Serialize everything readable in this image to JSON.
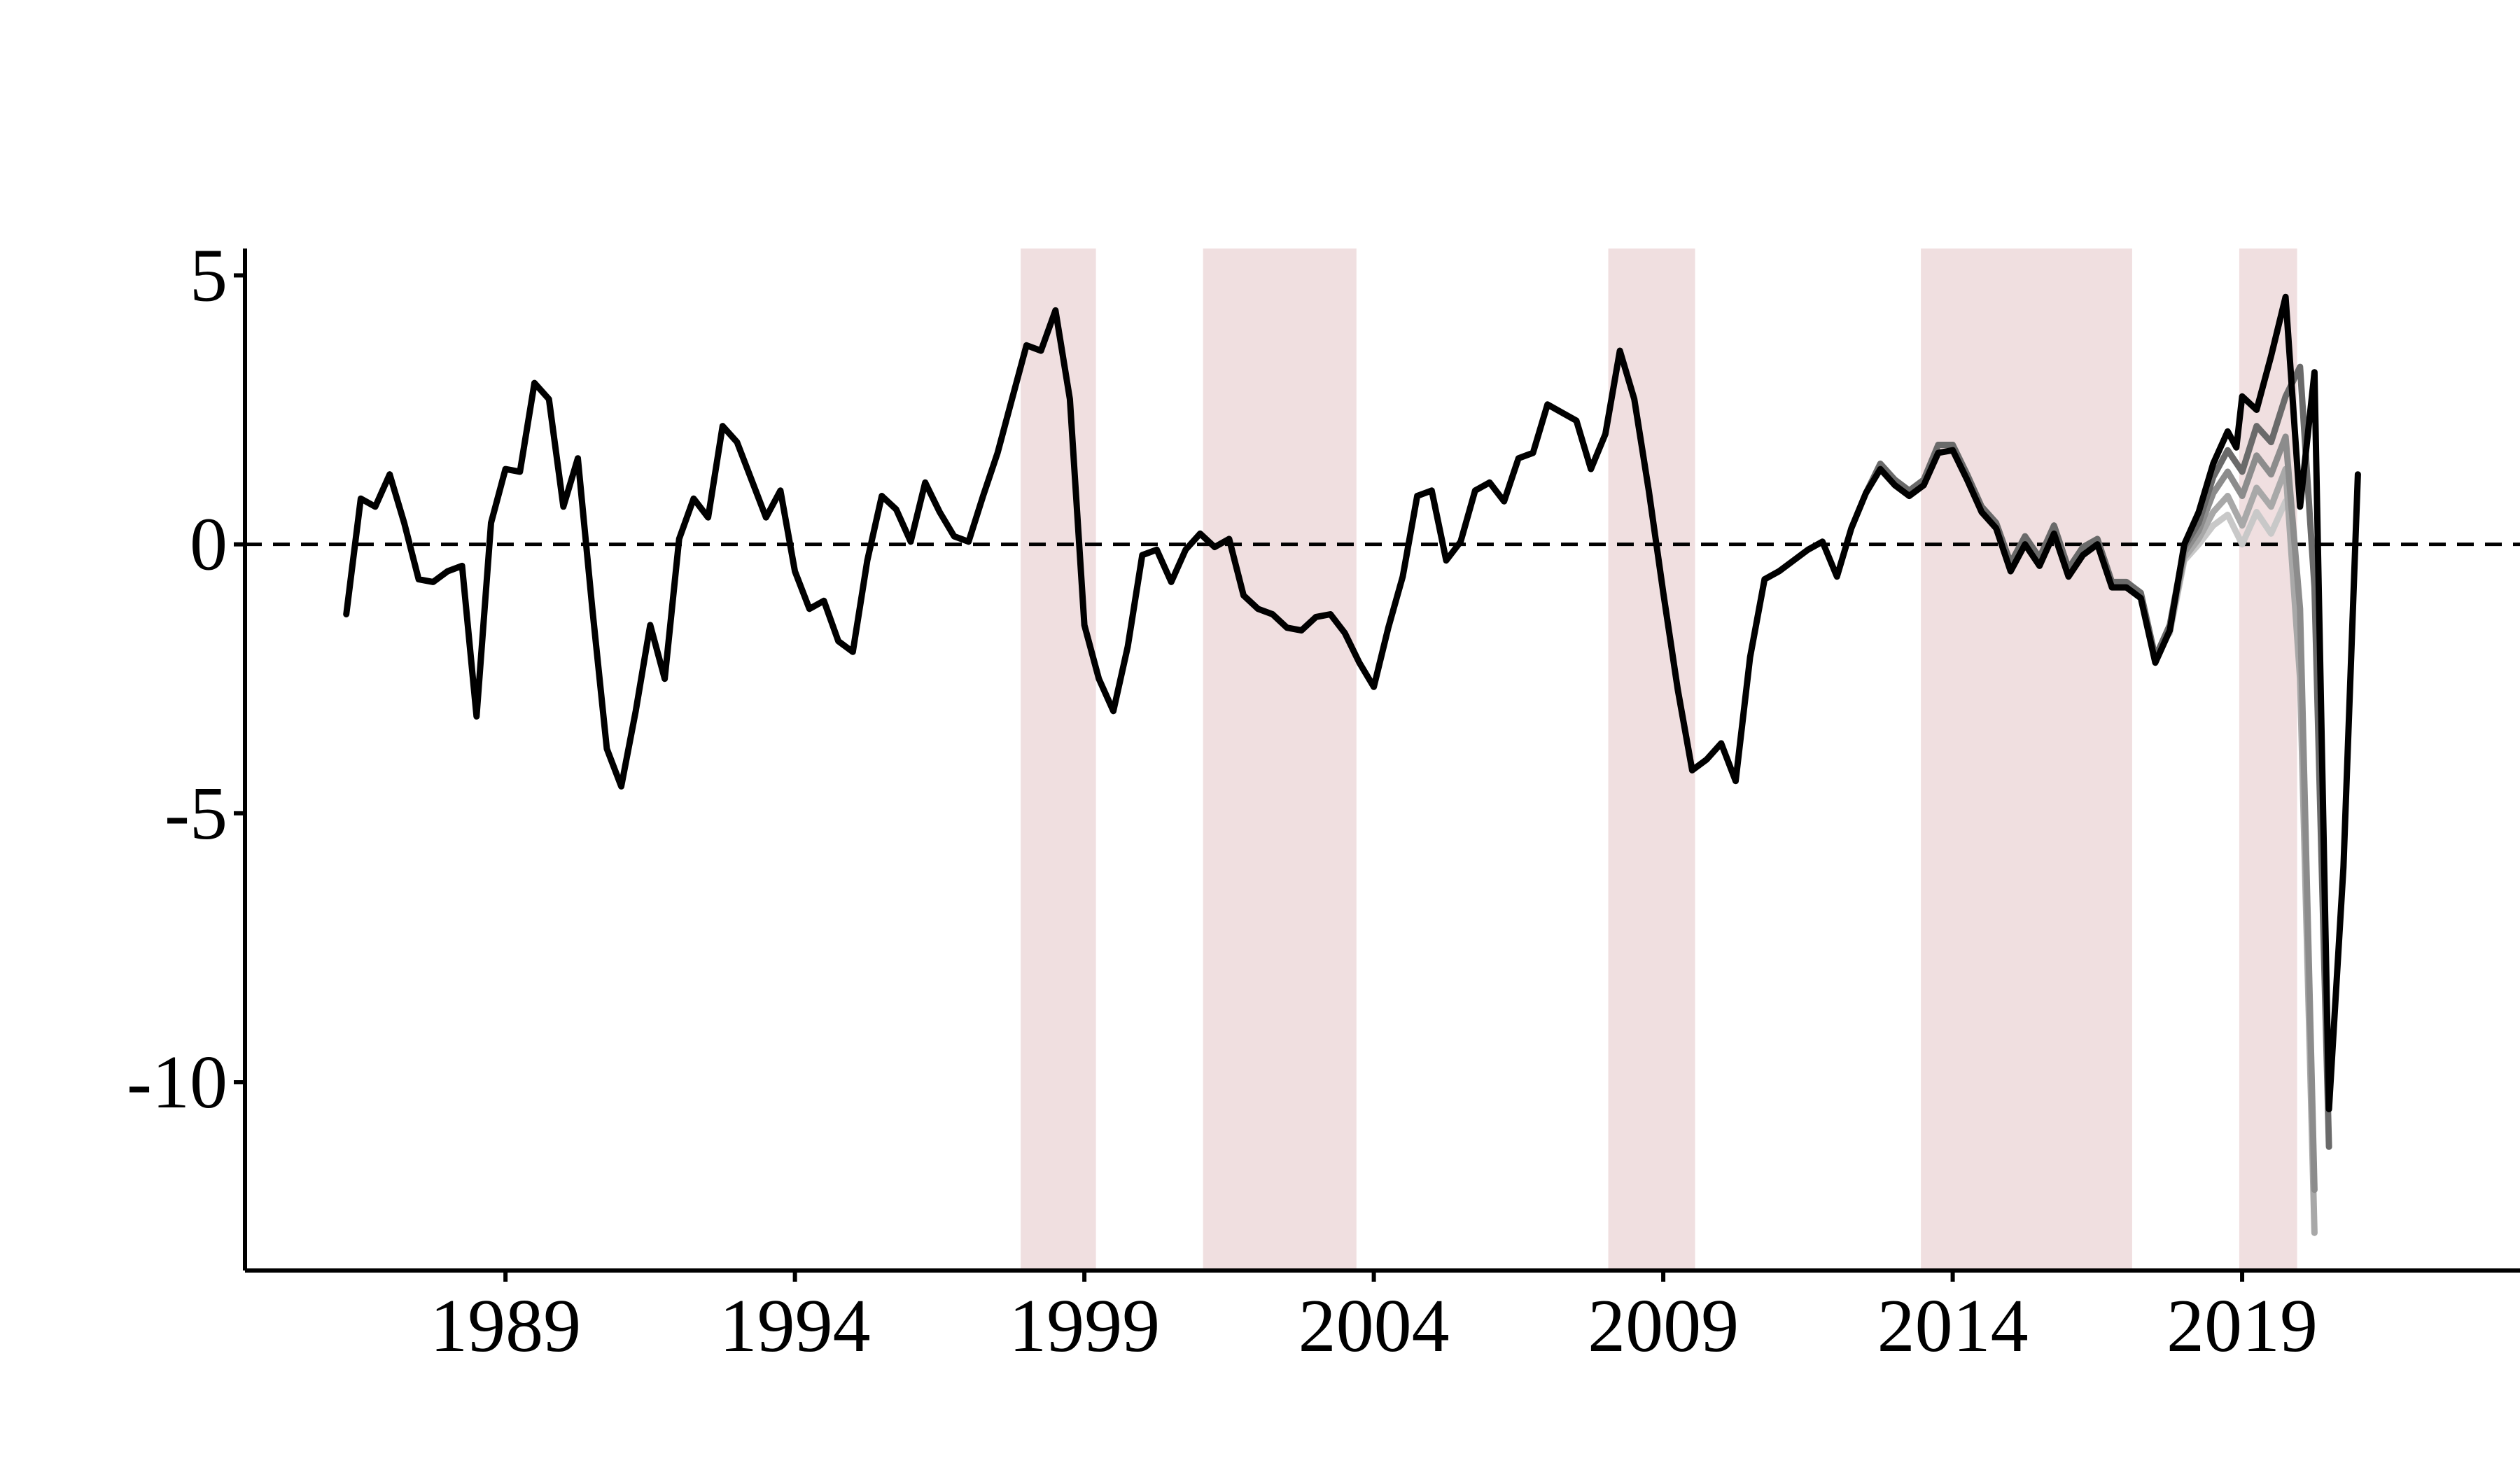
{
  "chart_data": {
    "type": "line",
    "title": "",
    "xlabel": "",
    "ylabel": "",
    "xlim": [
      1984.5,
      2023.8
    ],
    "ylim": [
      -13.5,
      5.5
    ],
    "x_ticks": [
      1989,
      1994,
      1999,
      2004,
      2009,
      2014,
      2019
    ],
    "x_tick_labels": [
      "1989",
      "1994",
      "1999",
      "2004",
      "2009",
      "2014",
      "2019"
    ],
    "y_ticks": [
      5,
      0,
      -5,
      -10
    ],
    "y_tick_labels": [
      "5",
      "0",
      "-5",
      "-10"
    ],
    "reference_line": {
      "y": 0,
      "style": "dashed"
    },
    "shaded_periods": [
      {
        "start": 1997.9,
        "end": 1999.2
      },
      {
        "start": 2001.05,
        "end": 2003.7
      },
      {
        "start": 2008.05,
        "end": 2009.55
      },
      {
        "start": 2013.45,
        "end": 2017.1
      },
      {
        "start": 2018.95,
        "end": 2019.95
      }
    ],
    "series": [
      {
        "color": "#000000",
        "points": [
          [
            1986.25,
            -1.3
          ],
          [
            1986.5,
            0.85
          ],
          [
            1986.75,
            0.7
          ],
          [
            1987.0,
            1.3
          ],
          [
            1987.25,
            0.4
          ],
          [
            1987.5,
            -0.65
          ],
          [
            1987.75,
            -0.7
          ],
          [
            1988.0,
            -0.5
          ],
          [
            1988.25,
            -0.4
          ],
          [
            1988.5,
            -3.2
          ],
          [
            1988.75,
            0.4
          ],
          [
            1989.0,
            1.4
          ],
          [
            1989.25,
            1.35
          ],
          [
            1989.5,
            3.0
          ],
          [
            1989.75,
            2.7
          ],
          [
            1990.0,
            0.7
          ],
          [
            1990.25,
            1.6
          ],
          [
            1990.5,
            -1.2
          ],
          [
            1990.75,
            -3.8
          ],
          [
            1991.0,
            -4.5
          ],
          [
            1991.25,
            -3.1
          ],
          [
            1991.5,
            -1.5
          ],
          [
            1991.75,
            -2.5
          ],
          [
            1992.0,
            0.1
          ],
          [
            1992.25,
            0.85
          ],
          [
            1992.5,
            0.5
          ],
          [
            1992.75,
            2.2
          ],
          [
            1993.0,
            1.9
          ],
          [
            1993.25,
            1.2
          ],
          [
            1993.5,
            0.5
          ],
          [
            1993.75,
            1.0
          ],
          [
            1994.0,
            -0.5
          ],
          [
            1994.25,
            -1.2
          ],
          [
            1994.5,
            -1.05
          ],
          [
            1994.75,
            -1.8
          ],
          [
            1995.0,
            -2.0
          ],
          [
            1995.25,
            -0.3
          ],
          [
            1995.5,
            0.9
          ],
          [
            1995.75,
            0.65
          ],
          [
            1996.0,
            0.05
          ],
          [
            1996.25,
            1.15
          ],
          [
            1996.5,
            0.6
          ],
          [
            1996.75,
            0.15
          ],
          [
            1997.0,
            0.05
          ],
          [
            1997.25,
            0.9
          ],
          [
            1997.5,
            1.7
          ],
          [
            1997.75,
            2.7
          ],
          [
            1998.0,
            3.7
          ],
          [
            1998.25,
            3.6
          ],
          [
            1998.5,
            4.35
          ],
          [
            1998.75,
            2.7
          ],
          [
            1999.0,
            -1.5
          ],
          [
            1999.25,
            -2.5
          ],
          [
            1999.5,
            -3.1
          ],
          [
            1999.75,
            -1.9
          ],
          [
            2000.0,
            -0.2
          ],
          [
            2000.25,
            -0.1
          ],
          [
            2000.5,
            -0.7
          ],
          [
            2000.75,
            -0.1
          ],
          [
            2001.0,
            0.2
          ],
          [
            2001.25,
            -0.05
          ],
          [
            2001.5,
            0.1
          ],
          [
            2001.75,
            -0.95
          ],
          [
            2002.0,
            -1.2
          ],
          [
            2002.25,
            -1.3
          ],
          [
            2002.5,
            -1.55
          ],
          [
            2002.75,
            -1.6
          ],
          [
            2003.0,
            -1.35
          ],
          [
            2003.25,
            -1.3
          ],
          [
            2003.5,
            -1.65
          ],
          [
            2003.75,
            -2.2
          ],
          [
            2004.0,
            -2.65
          ],
          [
            2004.25,
            -1.55
          ],
          [
            2004.5,
            -0.6
          ],
          [
            2004.75,
            0.9
          ],
          [
            2005.0,
            1.0
          ],
          [
            2005.25,
            -0.3
          ],
          [
            2005.5,
            0.05
          ],
          [
            2005.75,
            1.0
          ],
          [
            2006.0,
            1.15
          ],
          [
            2006.25,
            0.8
          ],
          [
            2006.5,
            1.6
          ],
          [
            2006.75,
            1.7
          ],
          [
            2007.0,
            2.6
          ],
          [
            2007.25,
            2.45
          ],
          [
            2007.5,
            2.3
          ],
          [
            2007.75,
            1.4
          ],
          [
            2008.0,
            2.05
          ],
          [
            2008.25,
            3.6
          ],
          [
            2008.5,
            2.7
          ],
          [
            2008.75,
            1.0
          ],
          [
            2009.0,
            -0.9
          ],
          [
            2009.25,
            -2.7
          ],
          [
            2009.5,
            -4.2
          ],
          [
            2009.75,
            -4.0
          ],
          [
            2010.0,
            -3.7
          ],
          [
            2010.25,
            -4.4
          ],
          [
            2010.5,
            -2.1
          ],
          [
            2010.75,
            -0.65
          ],
          [
            2011.0,
            -0.5
          ],
          [
            2011.25,
            -0.3
          ],
          [
            2011.5,
            -0.1
          ],
          [
            2011.75,
            0.05
          ],
          [
            2012.0,
            -0.6
          ],
          [
            2012.25,
            0.3
          ],
          [
            2012.5,
            0.95
          ],
          [
            2012.75,
            1.4
          ],
          [
            2013.0,
            1.1
          ],
          [
            2013.25,
            0.9
          ],
          [
            2013.5,
            1.1
          ],
          [
            2013.75,
            1.7
          ],
          [
            2014.0,
            1.75
          ],
          [
            2014.25,
            1.2
          ],
          [
            2014.5,
            0.6
          ],
          [
            2014.75,
            0.3
          ],
          [
            2015.0,
            -0.5
          ],
          [
            2015.25,
            0.0
          ],
          [
            2015.5,
            -0.4
          ],
          [
            2015.75,
            0.2
          ],
          [
            2016.0,
            -0.6
          ],
          [
            2016.25,
            -0.2
          ],
          [
            2016.5,
            0.0
          ],
          [
            2016.75,
            -0.8
          ],
          [
            2017.0,
            -0.8
          ],
          [
            2017.25,
            -1.0
          ],
          [
            2017.5,
            -2.2
          ],
          [
            2017.75,
            -1.6
          ],
          [
            2018.0,
            0.0
          ],
          [
            2018.25,
            0.6
          ],
          [
            2018.5,
            1.5
          ],
          [
            2018.75,
            2.1
          ],
          [
            2018.9,
            1.8
          ],
          [
            2019.0,
            2.75
          ],
          [
            2019.25,
            2.5
          ],
          [
            2019.5,
            3.5
          ],
          [
            2019.75,
            4.6
          ],
          [
            2020.0,
            0.7
          ],
          [
            2020.25,
            3.2
          ],
          [
            2020.5,
            -10.5
          ],
          [
            2020.75,
            -6.0
          ],
          [
            2021.0,
            1.3
          ]
        ]
      },
      {
        "color": "#6a6a6a",
        "points": [
          [
            2012.5,
            0.95
          ],
          [
            2012.75,
            1.5
          ],
          [
            2013.0,
            1.2
          ],
          [
            2013.25,
            1.0
          ],
          [
            2013.5,
            1.2
          ],
          [
            2013.75,
            1.85
          ],
          [
            2014.0,
            1.85
          ],
          [
            2014.25,
            1.3
          ],
          [
            2014.5,
            0.7
          ],
          [
            2014.75,
            0.4
          ],
          [
            2015.0,
            -0.35
          ],
          [
            2015.25,
            0.15
          ],
          [
            2015.5,
            -0.25
          ],
          [
            2015.75,
            0.35
          ],
          [
            2016.0,
            -0.45
          ],
          [
            2016.25,
            -0.05
          ],
          [
            2016.5,
            0.1
          ],
          [
            2016.75,
            -0.7
          ],
          [
            2017.0,
            -0.7
          ],
          [
            2017.25,
            -0.9
          ],
          [
            2017.5,
            -2.1
          ],
          [
            2017.75,
            -1.5
          ],
          [
            2018.0,
            -0.05
          ],
          [
            2018.25,
            0.4
          ],
          [
            2018.5,
            1.25
          ],
          [
            2018.75,
            1.75
          ],
          [
            2019.0,
            1.35
          ],
          [
            2019.25,
            2.2
          ],
          [
            2019.5,
            1.9
          ],
          [
            2019.75,
            2.75
          ],
          [
            2020.0,
            3.3
          ],
          [
            2020.25,
            -0.8
          ],
          [
            2020.5,
            -11.2
          ]
        ]
      },
      {
        "color": "#8c8c8c",
        "points": [
          [
            2017.75,
            -1.55
          ],
          [
            2018.0,
            -0.15
          ],
          [
            2018.25,
            0.25
          ],
          [
            2018.5,
            0.95
          ],
          [
            2018.75,
            1.35
          ],
          [
            2019.0,
            0.9
          ],
          [
            2019.25,
            1.65
          ],
          [
            2019.5,
            1.3
          ],
          [
            2019.75,
            2.0
          ],
          [
            2020.0,
            -1.2
          ],
          [
            2020.25,
            -12.0
          ]
        ]
      },
      {
        "color": "#a8a8a8",
        "points": [
          [
            2017.75,
            -1.6
          ],
          [
            2018.0,
            -0.25
          ],
          [
            2018.25,
            0.1
          ],
          [
            2018.5,
            0.6
          ],
          [
            2018.75,
            0.9
          ],
          [
            2019.0,
            0.35
          ],
          [
            2019.25,
            1.05
          ],
          [
            2019.5,
            0.7
          ],
          [
            2019.75,
            1.4
          ],
          [
            2020.0,
            -2.5
          ],
          [
            2020.25,
            -12.8
          ]
        ]
      },
      {
        "color": "#c8c8c8",
        "points": [
          [
            2017.75,
            -1.65
          ],
          [
            2018.0,
            -0.3
          ],
          [
            2018.25,
            0.0
          ],
          [
            2018.5,
            0.35
          ],
          [
            2018.75,
            0.55
          ],
          [
            2019.0,
            0.0
          ],
          [
            2019.25,
            0.6
          ],
          [
            2019.5,
            0.2
          ],
          [
            2019.75,
            0.8
          ]
        ]
      }
    ]
  }
}
